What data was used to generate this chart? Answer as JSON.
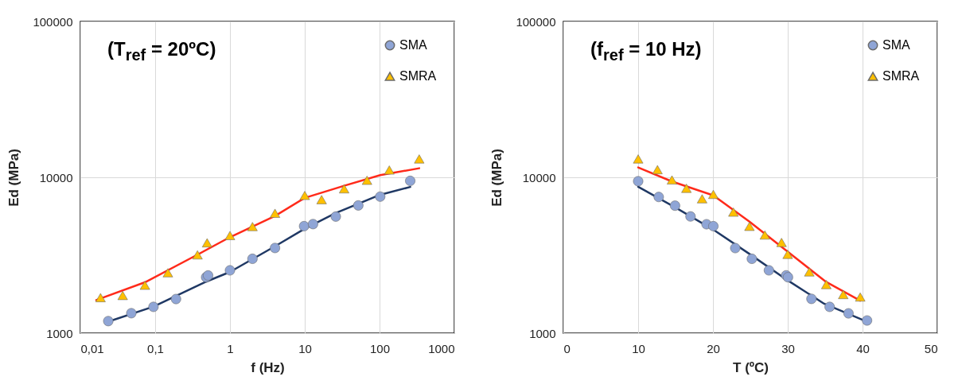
{
  "chart_data": [
    {
      "type": "scatter",
      "annotations": [
        "(T$_{ref}$ = 20ºC)"
      ],
      "xlabel": "f (Hz)",
      "ylabel": "Ed (MPa)",
      "log": "xy",
      "grid": true,
      "legend": "top right",
      "xlim": [
        0.01,
        1000
      ],
      "xticks": [
        {
          "value": 0.01,
          "label": "0,01"
        },
        {
          "value": 0.1,
          "label": "0,1"
        },
        1,
        10,
        100,
        1000
      ],
      "ylim": [
        1000,
        100000
      ],
      "yticks": [
        1000,
        10000,
        100000
      ],
      "series": [
        {
          "name": "SMA",
          "color": "#8fa5d6",
          "marker": "circle",
          "x": [
            0.0236,
            0.048,
            0.095,
            0.19,
            0.48,
            0.51,
            1,
            2,
            4,
            9.8,
            12.9,
            26,
            52,
            102,
            257
          ],
          "values": [
            1195,
            1343,
            1475,
            1656,
            2285,
            2345,
            2530,
            3000,
            3520,
            4860,
            5010,
            5600,
            6600,
            7520,
            9490
          ]
        },
        {
          "name": "SMRA",
          "color": "#ffc000",
          "marker": "triangle",
          "x": [
            0.0186,
            0.0368,
            0.073,
            0.148,
            0.368,
            0.495,
            1,
            2,
            4,
            10,
            16.8,
            33.6,
            68,
            135,
            339
          ],
          "values": [
            1690,
            1745,
            2030,
            2440,
            3180,
            3800,
            4230,
            4830,
            5880,
            7650,
            7190,
            8440,
            9570,
            11140,
            13120
          ]
        },
        {
          "type": "line",
          "color": "#1f3864",
          "marker": "none",
          "x": [
            0.0236,
            0.095,
            0.48,
            1,
            4,
            10,
            26,
            102,
            257
          ],
          "values": [
            1185,
            1480,
            2140,
            2470,
            3610,
            4680,
            5900,
            7730,
            8670
          ]
        },
        {
          "type": "line",
          "color": "#ff2a1a",
          "marker": "none",
          "x": [
            0.0163,
            0.073,
            0.368,
            1,
            4,
            10,
            33.6,
            102,
            339
          ],
          "values": [
            1630,
            2120,
            3190,
            4130,
            5650,
            7380,
            8830,
            10330,
            11430
          ]
        }
      ]
    },
    {
      "type": "scatter",
      "annotations": [
        "(f$_{ref}$ = 10 Hz)"
      ],
      "xlabel": "T (ºC)",
      "ylabel": "Ed (MPa)",
      "log": "y",
      "grid": true,
      "legend": "top right",
      "xlim": [
        0,
        50
      ],
      "xticks": [
        0,
        10,
        20,
        30,
        40,
        50
      ],
      "ylim": [
        1000,
        100000
      ],
      "yticks": [
        1000,
        10000,
        100000
      ],
      "series": [
        {
          "name": "SMA",
          "color": "#8fa5d6",
          "marker": "circle",
          "x": [
            10,
            12.75,
            14.93,
            17,
            19.14,
            20.05,
            22.98,
            25.2,
            27.48,
            29.79,
            30.03,
            33.17,
            35.6,
            38.12,
            40.6
          ],
          "values": [
            9440,
            7480,
            6580,
            5610,
            5000,
            4860,
            3515,
            3000,
            2530,
            2350,
            2285,
            1660,
            1475,
            1340,
            1206
          ]
        },
        {
          "name": "SMRA",
          "color": "#ffc000",
          "marker": "triangle",
          "x": [
            10,
            12.58,
            14.52,
            16.45,
            18.55,
            20.05,
            22.73,
            24.88,
            26.94,
            29.17,
            29.99,
            32.88,
            35.15,
            37.42,
            39.69
          ],
          "values": [
            13120,
            11200,
            9620,
            8500,
            7280,
            7770,
            5980,
            4845,
            4264,
            3820,
            3205,
            2472,
            2051,
            1770,
            1706
          ]
        },
        {
          "type": "line",
          "color": "#1f3864",
          "marker": "none",
          "x": [
            10,
            15.06,
            20,
            24.96,
            30,
            34.86,
            40.6
          ],
          "values": [
            8690,
            6370,
            4630,
            3205,
            2180,
            1545,
            1184
          ]
        },
        {
          "type": "line",
          "color": "#ff2a1a",
          "marker": "none",
          "x": [
            10,
            14.52,
            20.05,
            24.88,
            29.99,
            35.15,
            39.69
          ],
          "values": [
            11560,
            9400,
            7660,
            5190,
            3330,
            2128,
            1618
          ]
        }
      ]
    }
  ]
}
